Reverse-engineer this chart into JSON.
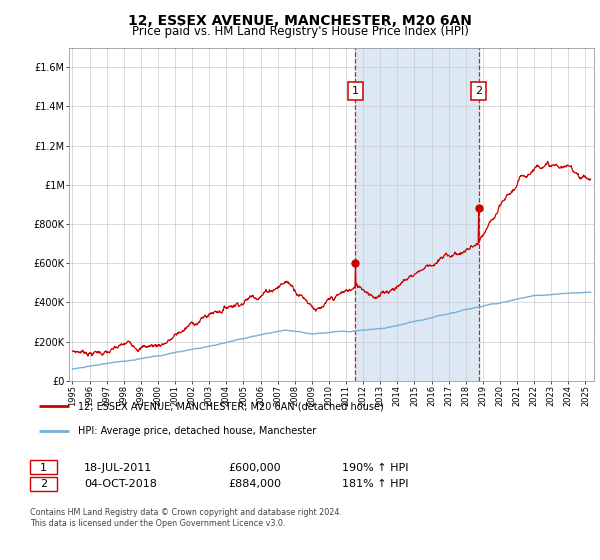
{
  "title": "12, ESSEX AVENUE, MANCHESTER, M20 6AN",
  "subtitle": "Price paid vs. HM Land Registry's House Price Index (HPI)",
  "legend_line1": "12, ESSEX AVENUE, MANCHESTER, M20 6AN (detached house)",
  "legend_line2": "HPI: Average price, detached house, Manchester",
  "annotation1_date": "18-JUL-2011",
  "annotation1_price": "£600,000",
  "annotation1_hpi": "190% ↑ HPI",
  "annotation2_date": "04-OCT-2018",
  "annotation2_price": "£884,000",
  "annotation2_hpi": "181% ↑ HPI",
  "footer": "Contains HM Land Registry data © Crown copyright and database right 2024.\nThis data is licensed under the Open Government Licence v3.0.",
  "sale1_x": 2011.54,
  "sale1_y": 600000,
  "sale2_x": 2018.75,
  "sale2_y": 884000,
  "vline1_x": 2011.54,
  "vline2_x": 2018.75,
  "ylim": [
    0,
    1700000
  ],
  "xlim": [
    1994.8,
    2025.5
  ],
  "plot_bg": "white",
  "span_color": "#dce9f5",
  "red_color": "#cc0000",
  "blue_color": "#7bafd4",
  "title_fontsize": 10,
  "subtitle_fontsize": 8.5
}
